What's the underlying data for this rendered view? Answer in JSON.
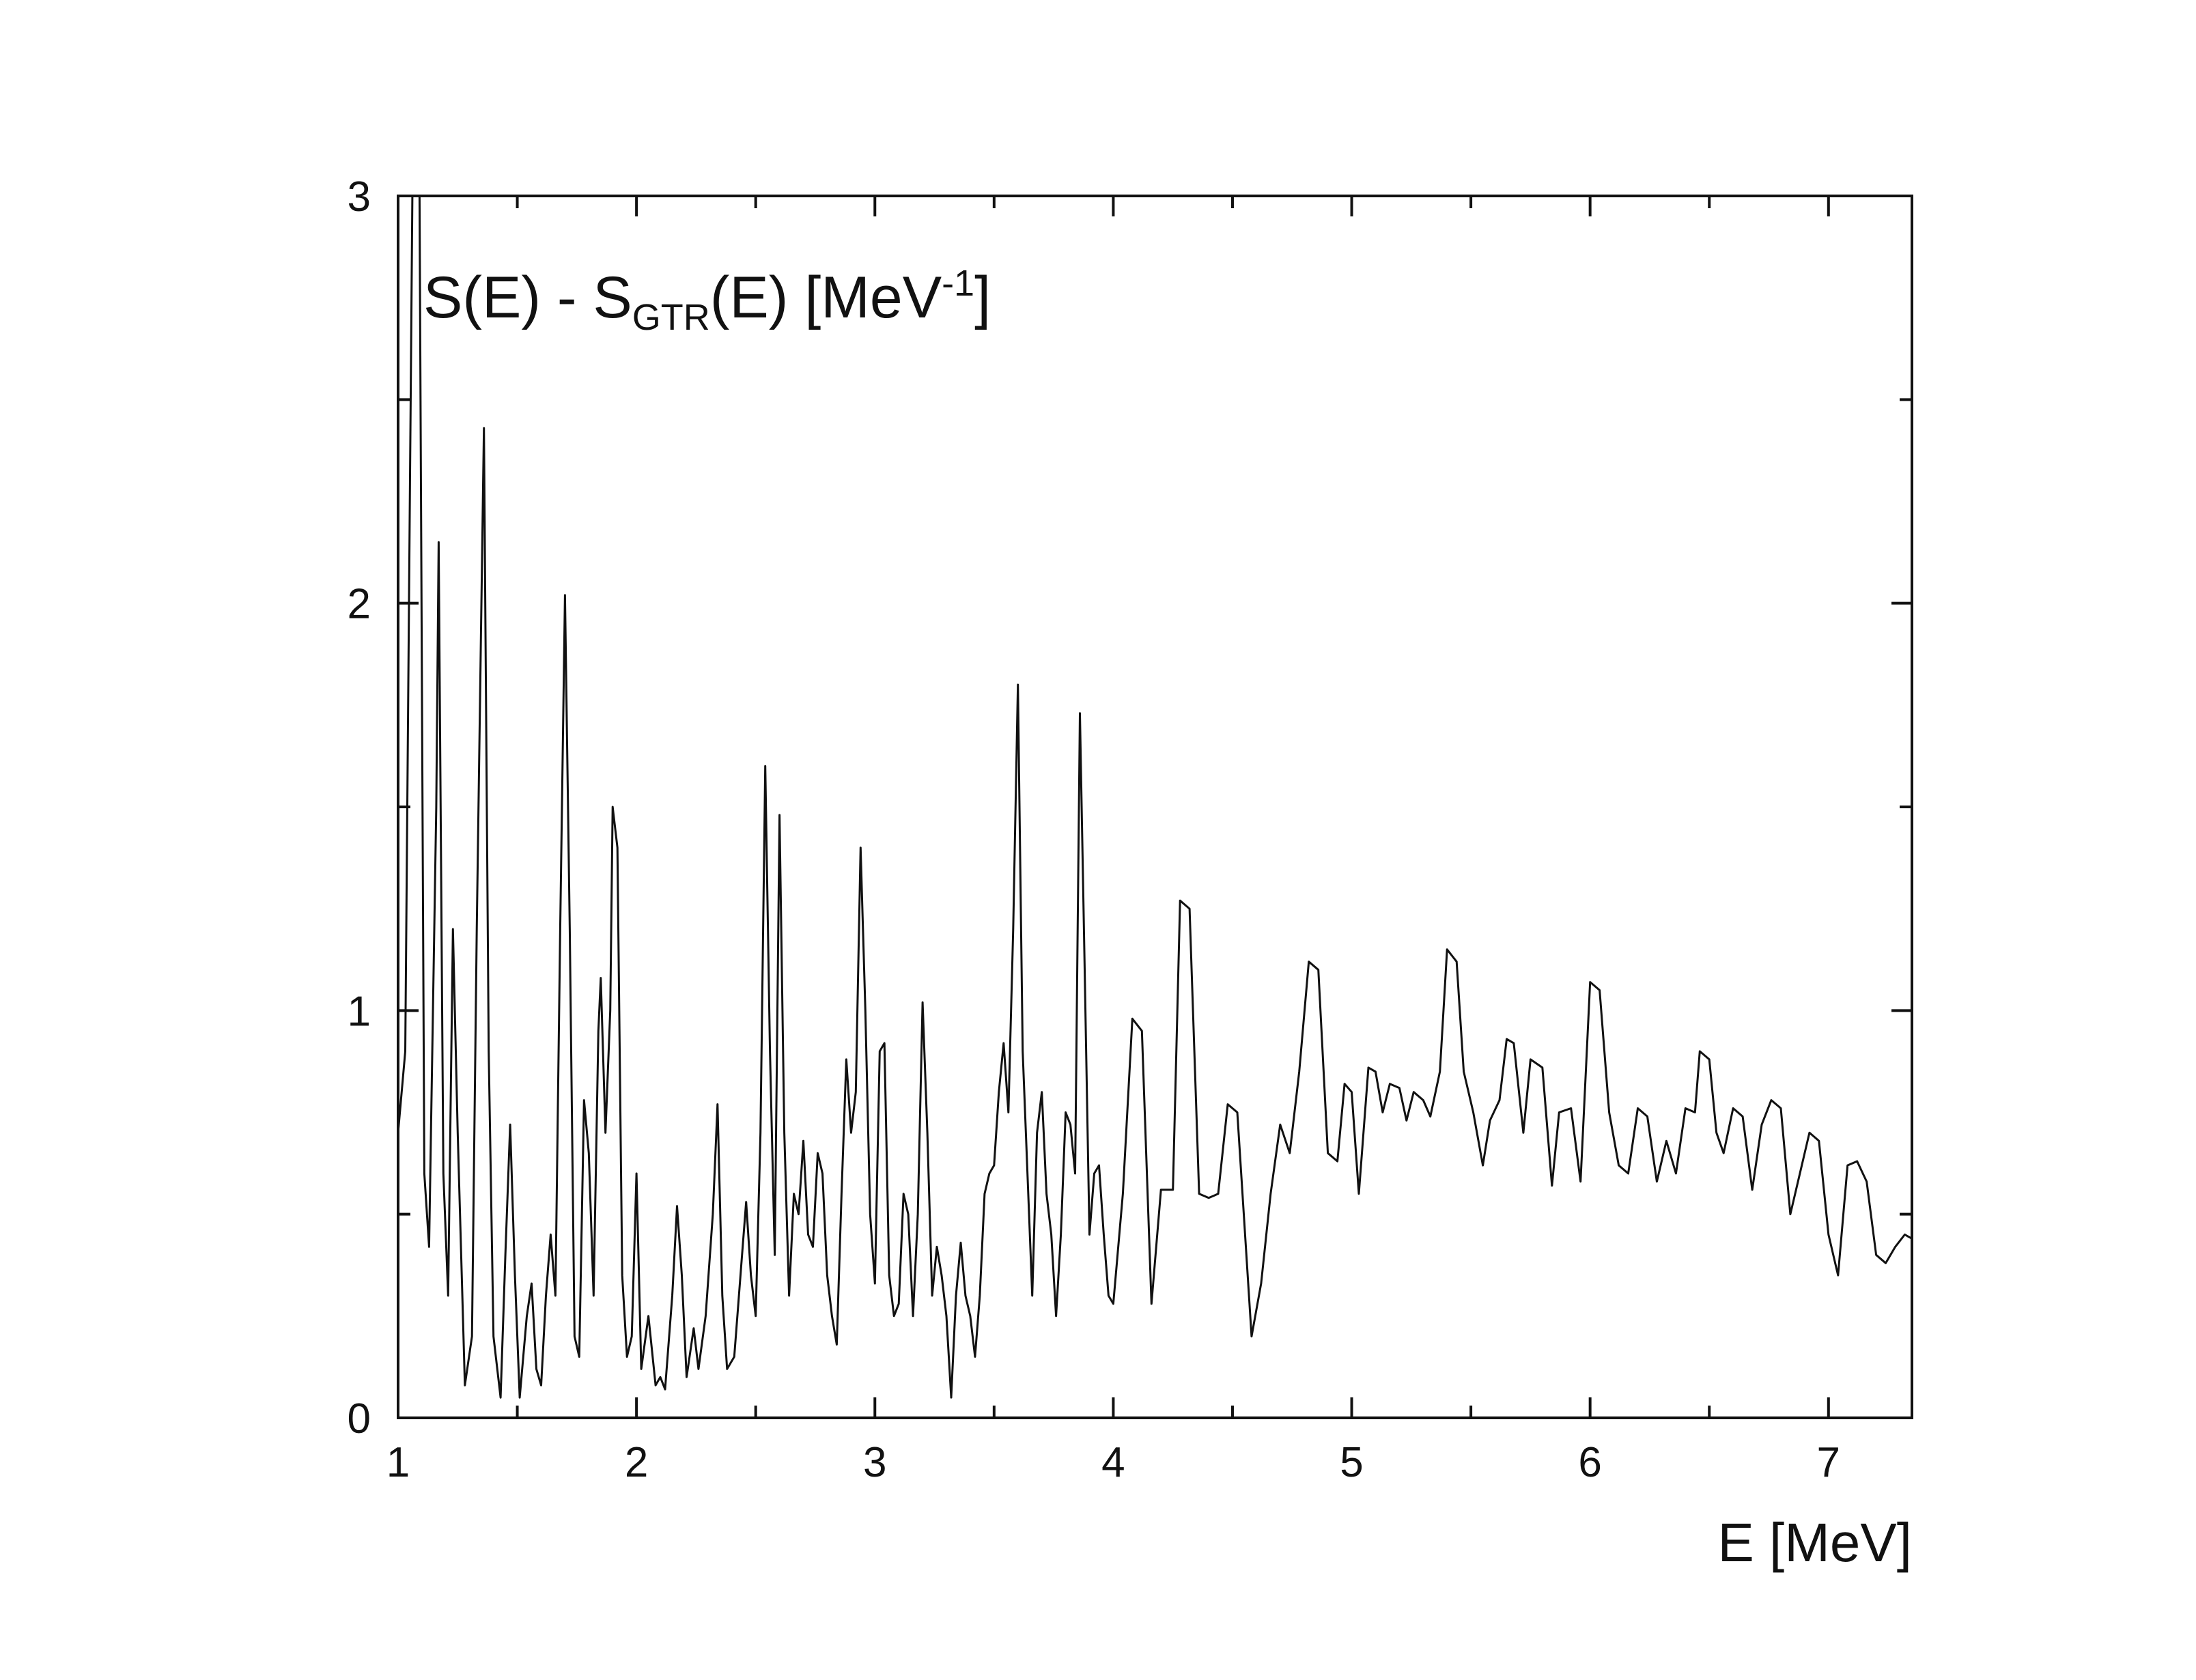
{
  "chart_data": {
    "type": "line",
    "title": {
      "main": "S(E) - S",
      "sub": "GTR",
      "after_sub": "(E) [MeV",
      "sup": "-1",
      "close": "]"
    },
    "xlabel": "E [MeV]",
    "ylabel": "",
    "xlim": [
      1,
      7.35
    ],
    "ylim": [
      0,
      3
    ],
    "x_ticks": [
      1,
      2,
      3,
      4,
      5,
      6,
      7
    ],
    "x_tick_labels": [
      "1",
      "2",
      "3",
      "4",
      "5",
      "6",
      "7"
    ],
    "x_minor_ticks": [
      1.5,
      2.5,
      3.5,
      4.5,
      5.5,
      6.5
    ],
    "y_ticks": [
      0,
      1,
      2,
      3
    ],
    "y_tick_labels": [
      "0",
      "1",
      "2",
      "3"
    ],
    "y_minor_ticks": [
      0.5,
      1.5,
      2.5
    ],
    "grid": false,
    "line_color": "#111111",
    "series": [
      {
        "points": [
          [
            1.0,
            0.7
          ],
          [
            1.03,
            0.9
          ],
          [
            1.06,
            3.0
          ],
          [
            1.09,
            3.0
          ],
          [
            1.11,
            0.6
          ],
          [
            1.13,
            0.42
          ],
          [
            1.16,
            1.5
          ],
          [
            1.17,
            2.15
          ],
          [
            1.19,
            0.6
          ],
          [
            1.21,
            0.3
          ],
          [
            1.23,
            1.2
          ],
          [
            1.25,
            0.7
          ],
          [
            1.28,
            0.08
          ],
          [
            1.31,
            0.2
          ],
          [
            1.33,
            1.2
          ],
          [
            1.36,
            2.43
          ],
          [
            1.38,
            0.9
          ],
          [
            1.4,
            0.2
          ],
          [
            1.43,
            0.05
          ],
          [
            1.45,
            0.4
          ],
          [
            1.47,
            0.72
          ],
          [
            1.49,
            0.35
          ],
          [
            1.51,
            0.05
          ],
          [
            1.54,
            0.25
          ],
          [
            1.56,
            0.33
          ],
          [
            1.58,
            0.12
          ],
          [
            1.6,
            0.08
          ],
          [
            1.62,
            0.3
          ],
          [
            1.64,
            0.45
          ],
          [
            1.66,
            0.3
          ],
          [
            1.68,
            1.2
          ],
          [
            1.7,
            2.02
          ],
          [
            1.72,
            1.2
          ],
          [
            1.74,
            0.2
          ],
          [
            1.76,
            0.15
          ],
          [
            1.78,
            0.78
          ],
          [
            1.8,
            0.65
          ],
          [
            1.82,
            0.3
          ],
          [
            1.84,
            0.95
          ],
          [
            1.85,
            1.08
          ],
          [
            1.87,
            0.7
          ],
          [
            1.89,
            1.0
          ],
          [
            1.9,
            1.5
          ],
          [
            1.92,
            1.4
          ],
          [
            1.94,
            0.35
          ],
          [
            1.96,
            0.15
          ],
          [
            1.98,
            0.2
          ],
          [
            2.0,
            0.6
          ],
          [
            2.02,
            0.12
          ],
          [
            2.05,
            0.25
          ],
          [
            2.08,
            0.08
          ],
          [
            2.1,
            0.1
          ],
          [
            2.12,
            0.07
          ],
          [
            2.15,
            0.3
          ],
          [
            2.17,
            0.52
          ],
          [
            2.19,
            0.35
          ],
          [
            2.21,
            0.1
          ],
          [
            2.24,
            0.22
          ],
          [
            2.26,
            0.12
          ],
          [
            2.29,
            0.25
          ],
          [
            2.32,
            0.5
          ],
          [
            2.34,
            0.77
          ],
          [
            2.36,
            0.3
          ],
          [
            2.38,
            0.12
          ],
          [
            2.41,
            0.15
          ],
          [
            2.44,
            0.38
          ],
          [
            2.46,
            0.53
          ],
          [
            2.48,
            0.35
          ],
          [
            2.5,
            0.25
          ],
          [
            2.52,
            0.7
          ],
          [
            2.54,
            1.6
          ],
          [
            2.56,
            0.9
          ],
          [
            2.58,
            0.4
          ],
          [
            2.6,
            1.48
          ],
          [
            2.62,
            0.7
          ],
          [
            2.64,
            0.3
          ],
          [
            2.66,
            0.55
          ],
          [
            2.68,
            0.5
          ],
          [
            2.7,
            0.68
          ],
          [
            2.72,
            0.45
          ],
          [
            2.74,
            0.42
          ],
          [
            2.76,
            0.65
          ],
          [
            2.78,
            0.6
          ],
          [
            2.8,
            0.35
          ],
          [
            2.82,
            0.25
          ],
          [
            2.84,
            0.18
          ],
          [
            2.86,
            0.55
          ],
          [
            2.88,
            0.88
          ],
          [
            2.9,
            0.7
          ],
          [
            2.92,
            0.8
          ],
          [
            2.94,
            1.4
          ],
          [
            2.96,
            1.0
          ],
          [
            2.98,
            0.5
          ],
          [
            3.0,
            0.33
          ],
          [
            3.02,
            0.9
          ],
          [
            3.04,
            0.92
          ],
          [
            3.06,
            0.35
          ],
          [
            3.08,
            0.25
          ],
          [
            3.1,
            0.28
          ],
          [
            3.12,
            0.55
          ],
          [
            3.14,
            0.5
          ],
          [
            3.16,
            0.25
          ],
          [
            3.18,
            0.5
          ],
          [
            3.2,
            1.02
          ],
          [
            3.22,
            0.7
          ],
          [
            3.24,
            0.3
          ],
          [
            3.26,
            0.42
          ],
          [
            3.28,
            0.35
          ],
          [
            3.3,
            0.25
          ],
          [
            3.32,
            0.05
          ],
          [
            3.34,
            0.3
          ],
          [
            3.36,
            0.43
          ],
          [
            3.38,
            0.3
          ],
          [
            3.4,
            0.25
          ],
          [
            3.42,
            0.15
          ],
          [
            3.44,
            0.3
          ],
          [
            3.46,
            0.55
          ],
          [
            3.48,
            0.6
          ],
          [
            3.5,
            0.62
          ],
          [
            3.52,
            0.8
          ],
          [
            3.54,
            0.92
          ],
          [
            3.56,
            0.75
          ],
          [
            3.58,
            1.2
          ],
          [
            3.6,
            1.8
          ],
          [
            3.62,
            0.9
          ],
          [
            3.64,
            0.6
          ],
          [
            3.66,
            0.3
          ],
          [
            3.68,
            0.7
          ],
          [
            3.7,
            0.8
          ],
          [
            3.72,
            0.55
          ],
          [
            3.74,
            0.45
          ],
          [
            3.76,
            0.25
          ],
          [
            3.78,
            0.45
          ],
          [
            3.8,
            0.75
          ],
          [
            3.82,
            0.72
          ],
          [
            3.84,
            0.6
          ],
          [
            3.86,
            1.73
          ],
          [
            3.88,
            1.1
          ],
          [
            3.9,
            0.45
          ],
          [
            3.92,
            0.6
          ],
          [
            3.94,
            0.62
          ],
          [
            3.96,
            0.45
          ],
          [
            3.98,
            0.3
          ],
          [
            4.0,
            0.28
          ],
          [
            4.04,
            0.55
          ],
          [
            4.08,
            0.98
          ],
          [
            4.12,
            0.95
          ],
          [
            4.16,
            0.28
          ],
          [
            4.2,
            0.56
          ],
          [
            4.25,
            0.56
          ],
          [
            4.28,
            1.27
          ],
          [
            4.32,
            1.25
          ],
          [
            4.36,
            0.55
          ],
          [
            4.4,
            0.54
          ],
          [
            4.44,
            0.55
          ],
          [
            4.48,
            0.77
          ],
          [
            4.52,
            0.75
          ],
          [
            4.58,
            0.2
          ],
          [
            4.62,
            0.33
          ],
          [
            4.66,
            0.55
          ],
          [
            4.7,
            0.72
          ],
          [
            4.74,
            0.65
          ],
          [
            4.78,
            0.85
          ],
          [
            4.82,
            1.12
          ],
          [
            4.86,
            1.1
          ],
          [
            4.9,
            0.65
          ],
          [
            4.94,
            0.63
          ],
          [
            4.97,
            0.82
          ],
          [
            5.0,
            0.8
          ],
          [
            5.03,
            0.55
          ],
          [
            5.07,
            0.86
          ],
          [
            5.1,
            0.85
          ],
          [
            5.13,
            0.75
          ],
          [
            5.16,
            0.82
          ],
          [
            5.2,
            0.81
          ],
          [
            5.23,
            0.73
          ],
          [
            5.26,
            0.8
          ],
          [
            5.3,
            0.78
          ],
          [
            5.33,
            0.74
          ],
          [
            5.37,
            0.85
          ],
          [
            5.4,
            1.15
          ],
          [
            5.44,
            1.12
          ],
          [
            5.47,
            0.85
          ],
          [
            5.51,
            0.75
          ],
          [
            5.55,
            0.62
          ],
          [
            5.58,
            0.73
          ],
          [
            5.62,
            0.78
          ],
          [
            5.65,
            0.93
          ],
          [
            5.68,
            0.92
          ],
          [
            5.72,
            0.7
          ],
          [
            5.75,
            0.88
          ],
          [
            5.8,
            0.86
          ],
          [
            5.84,
            0.57
          ],
          [
            5.87,
            0.75
          ],
          [
            5.92,
            0.76
          ],
          [
            5.96,
            0.58
          ],
          [
            6.0,
            1.07
          ],
          [
            6.04,
            1.05
          ],
          [
            6.08,
            0.75
          ],
          [
            6.12,
            0.62
          ],
          [
            6.16,
            0.6
          ],
          [
            6.2,
            0.76
          ],
          [
            6.24,
            0.74
          ],
          [
            6.28,
            0.58
          ],
          [
            6.32,
            0.68
          ],
          [
            6.36,
            0.6
          ],
          [
            6.4,
            0.76
          ],
          [
            6.44,
            0.75
          ],
          [
            6.46,
            0.9
          ],
          [
            6.5,
            0.88
          ],
          [
            6.53,
            0.7
          ],
          [
            6.56,
            0.65
          ],
          [
            6.6,
            0.76
          ],
          [
            6.64,
            0.74
          ],
          [
            6.68,
            0.56
          ],
          [
            6.72,
            0.72
          ],
          [
            6.76,
            0.78
          ],
          [
            6.8,
            0.76
          ],
          [
            6.84,
            0.5
          ],
          [
            6.88,
            0.6
          ],
          [
            6.92,
            0.7
          ],
          [
            6.96,
            0.68
          ],
          [
            7.0,
            0.45
          ],
          [
            7.04,
            0.35
          ],
          [
            7.08,
            0.62
          ],
          [
            7.12,
            0.63
          ],
          [
            7.16,
            0.58
          ],
          [
            7.2,
            0.4
          ],
          [
            7.24,
            0.38
          ],
          [
            7.28,
            0.42
          ],
          [
            7.32,
            0.45
          ],
          [
            7.35,
            0.44
          ]
        ]
      }
    ]
  }
}
